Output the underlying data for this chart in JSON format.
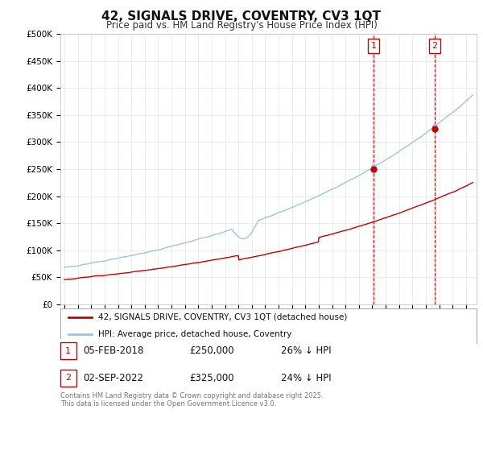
{
  "title": "42, SIGNALS DRIVE, COVENTRY, CV3 1QT",
  "subtitle": "Price paid vs. HM Land Registry's House Price Index (HPI)",
  "ylim": [
    0,
    500000
  ],
  "xlim": [
    1994.7,
    2025.8
  ],
  "hpi_color": "#a0c4e0",
  "price_color": "#cc0000",
  "t1_year": 2018.09,
  "t1_price": 250000,
  "t2_year": 2022.67,
  "t2_price": 325000,
  "legend_line1": "42, SIGNALS DRIVE, COVENTRY, CV3 1QT (detached house)",
  "legend_line2": "HPI: Average price, detached house, Coventry",
  "table_row1_num": "1",
  "table_row1_date": "05-FEB-2018",
  "table_row1_price": "£250,000",
  "table_row1_hpi": "26% ↓ HPI",
  "table_row2_num": "2",
  "table_row2_date": "02-SEP-2022",
  "table_row2_price": "£325,000",
  "table_row2_hpi": "24% ↓ HPI",
  "footer": "Contains HM Land Registry data © Crown copyright and database right 2025.\nThis data is licensed under the Open Government Licence v3.0.",
  "bg": "#ffffff",
  "grid_color": "#e5e5e5"
}
